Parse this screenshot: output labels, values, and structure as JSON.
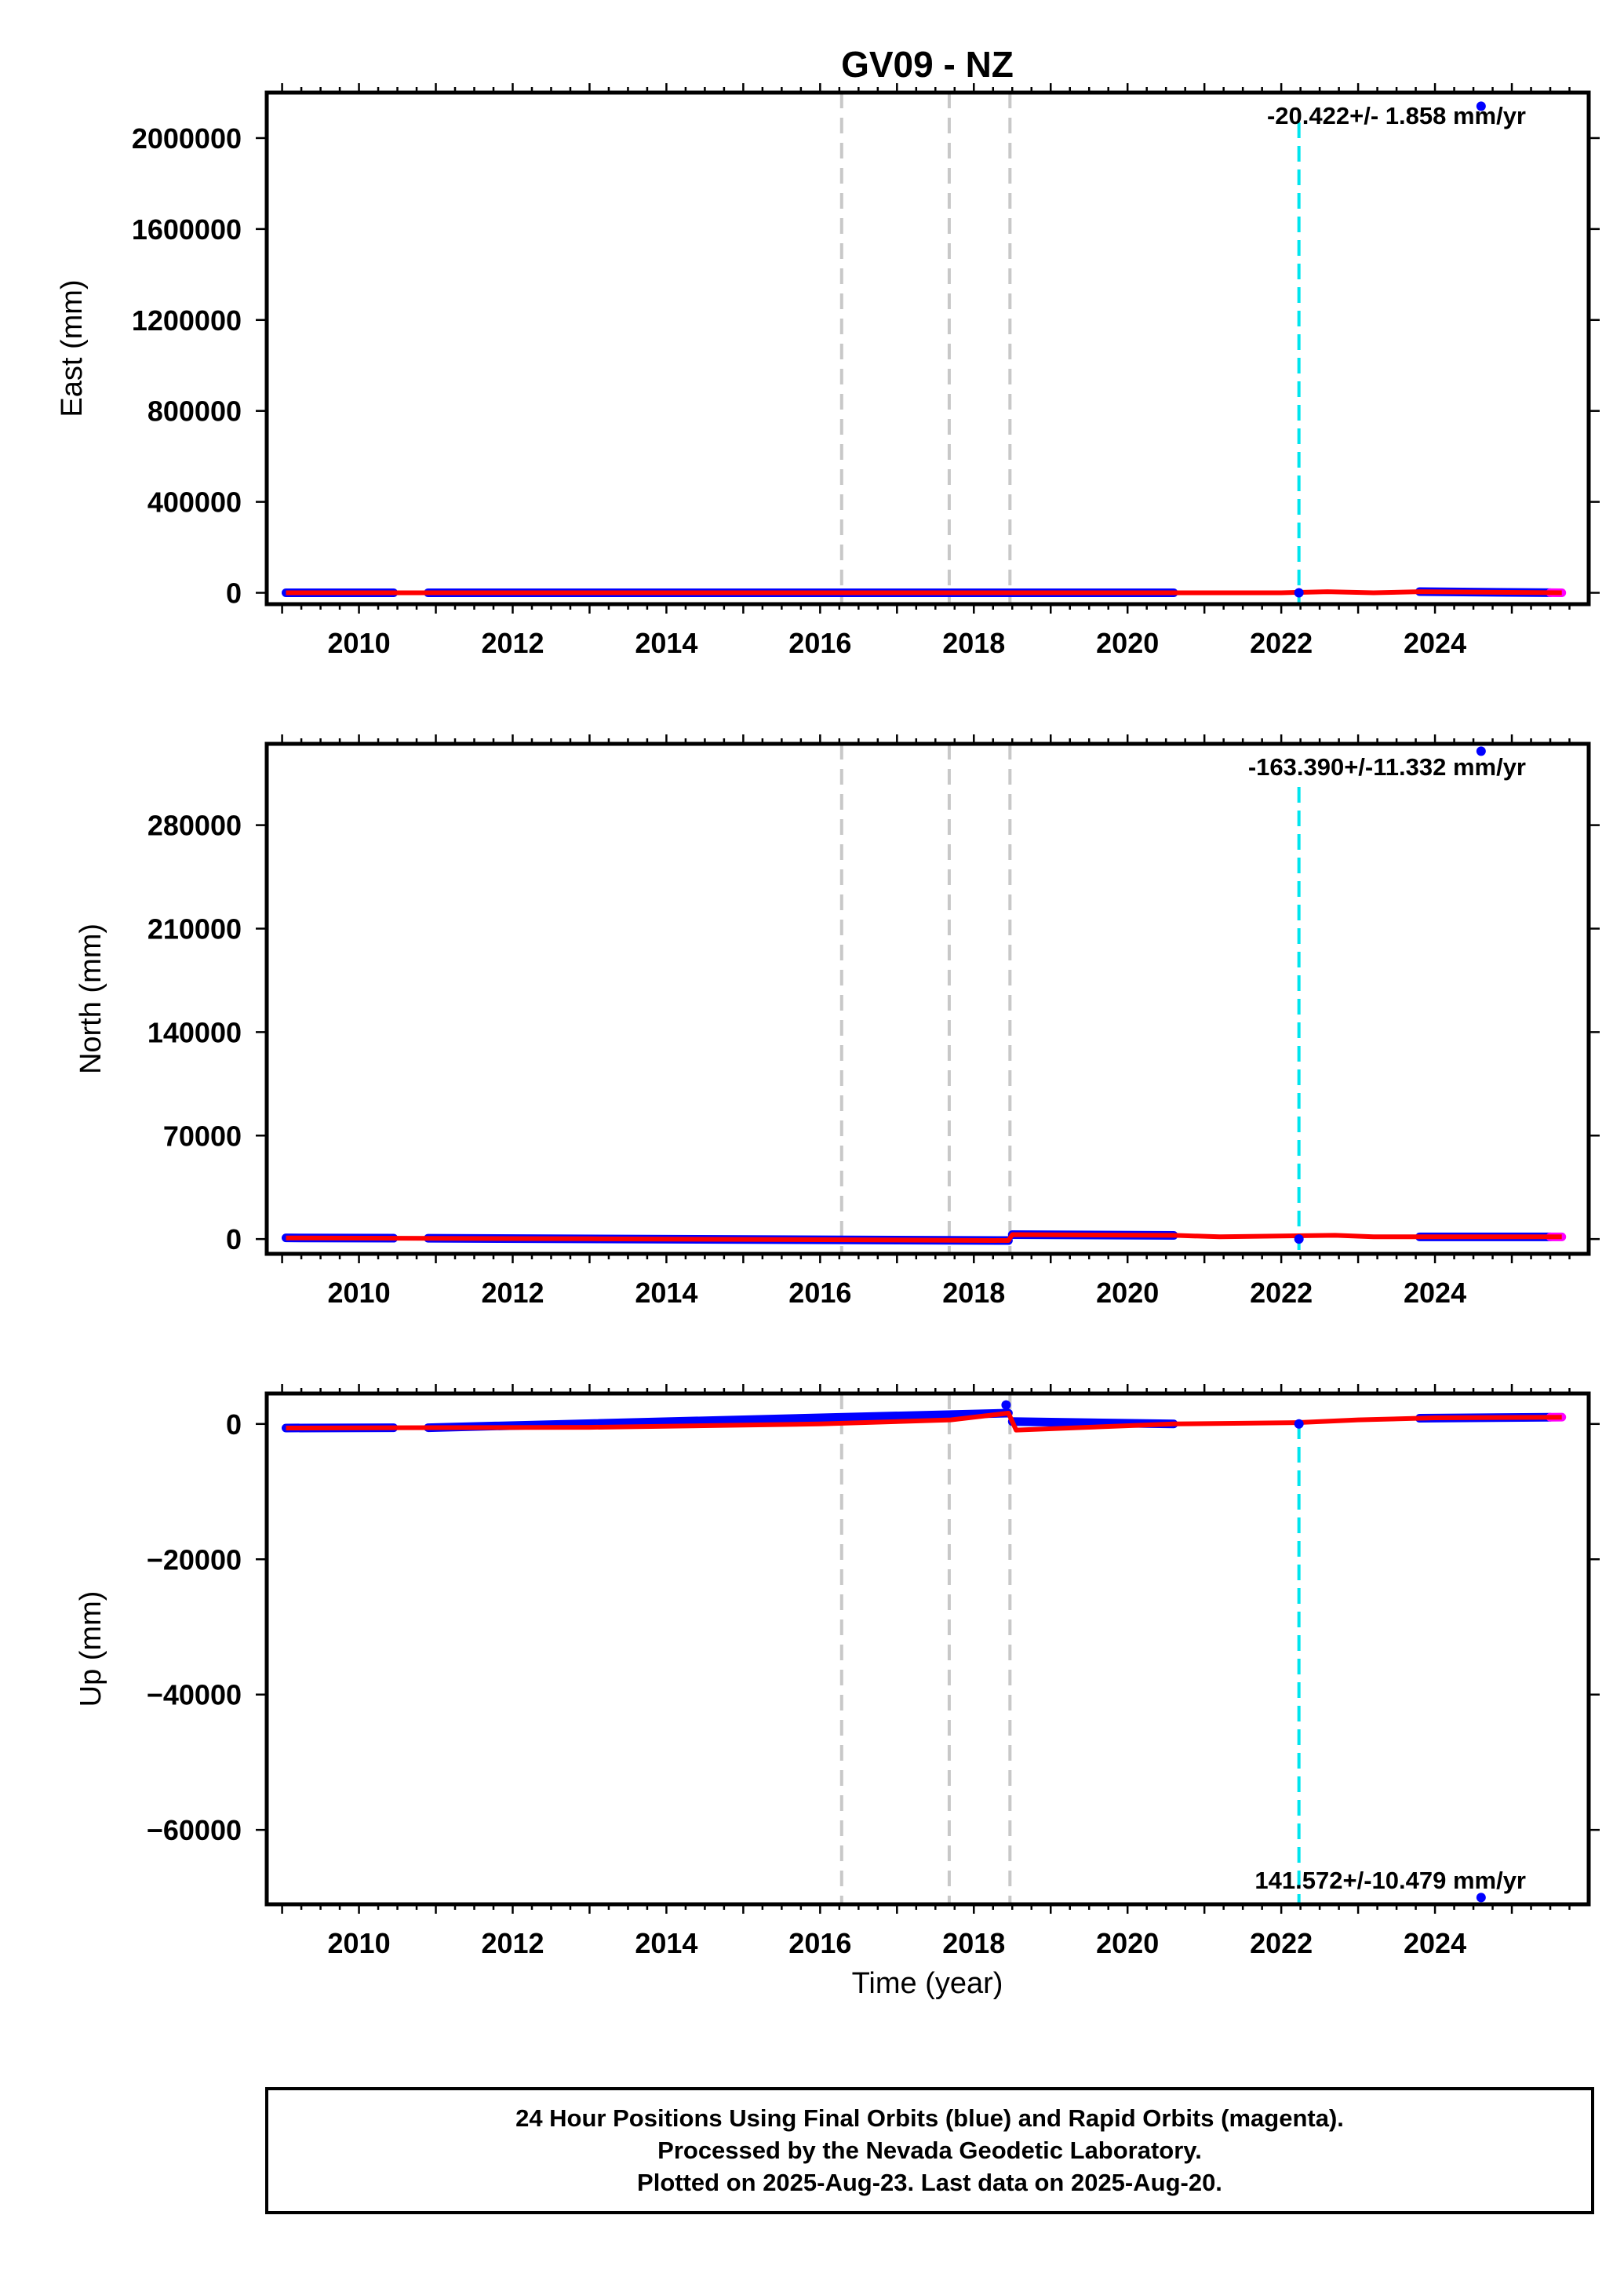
{
  "title": "GV09 - NZ",
  "xlabel": "Time (year)",
  "colors": {
    "final": "#0000ff",
    "rapid": "#ff00ff",
    "model": "#ff0000",
    "equipment_change": "#c8c8c8",
    "earthquake": "#00e5ee",
    "frame": "#000000"
  },
  "chart_data": [
    {
      "type": "scatter",
      "ylabel": "East (mm)",
      "xlim": [
        2008.8,
        2026.0
      ],
      "ylim": [
        -50000,
        2200000
      ],
      "xticks": [
        2010,
        2012,
        2014,
        2016,
        2018,
        2020,
        2022,
        2024
      ],
      "yticks": [
        0,
        400000,
        800000,
        1200000,
        1600000,
        2000000
      ],
      "equipment_changes": [
        2016.28,
        2017.68,
        2018.47
      ],
      "earthquake": 2022.23,
      "rate_label": "-20.422+/- 1.858 mm/yr",
      "series": [
        {
          "name": "final",
          "segments": [
            [
              2009.05,
              2010.45
            ],
            [
              2010.9,
              2020.6
            ],
            [
              2023.8,
              2025.5
            ]
          ]
        },
        {
          "name": "rapid",
          "segments": [
            [
              2025.5,
              2025.65
            ]
          ]
        }
      ],
      "model": [
        [
          2009.05,
          0
        ],
        [
          2020.6,
          0
        ],
        [
          2021.2,
          0
        ],
        [
          2022.0,
          0
        ],
        [
          2022.6,
          5000
        ],
        [
          2023.2,
          0
        ],
        [
          2023.8,
          5000
        ],
        [
          2025.65,
          0
        ]
      ],
      "outliers": [
        [
          2024.6,
          2140000
        ],
        [
          2022.23,
          0
        ]
      ]
    },
    {
      "type": "scatter",
      "ylabel": "North (mm)",
      "xlim": [
        2008.8,
        2026.0
      ],
      "ylim": [
        -10000,
        335000
      ],
      "xticks": [
        2010,
        2012,
        2014,
        2016,
        2018,
        2020,
        2022,
        2024
      ],
      "yticks": [
        0,
        70000,
        140000,
        210000,
        280000
      ],
      "equipment_changes": [
        2016.28,
        2017.68,
        2018.47
      ],
      "earthquake": 2022.23,
      "rate_label": "-163.390+/-11.332 mm/yr",
      "series": [
        {
          "name": "final",
          "segments": [
            [
              2009.05,
              2010.45
            ],
            [
              2010.9,
              2018.45
            ],
            [
              2018.5,
              2020.6
            ],
            [
              2023.8,
              2025.5
            ]
          ]
        },
        {
          "name": "rapid",
          "segments": [
            [
              2025.5,
              2025.65
            ]
          ]
        }
      ],
      "model": [
        [
          2009.05,
          800
        ],
        [
          2013.0,
          200
        ],
        [
          2018.45,
          -1000
        ],
        [
          2018.5,
          3000
        ],
        [
          2020.6,
          2500
        ],
        [
          2021.2,
          1500
        ],
        [
          2022.7,
          2500
        ],
        [
          2023.2,
          1500
        ],
        [
          2025.65,
          1500
        ]
      ],
      "outliers": [
        [
          2024.6,
          330000
        ],
        [
          2022.23,
          0
        ]
      ]
    },
    {
      "type": "scatter",
      "ylabel": "Up (mm)",
      "xlim": [
        2008.8,
        2026.0
      ],
      "ylim": [
        -71000,
        4500
      ],
      "xticks": [
        2010,
        2012,
        2014,
        2016,
        2018,
        2020,
        2022,
        2024
      ],
      "yticks": [
        0,
        -20000,
        -40000,
        -60000
      ],
      "equipment_changes": [
        2016.28,
        2017.68,
        2018.47
      ],
      "earthquake": 2022.23,
      "rate_label": "141.572+/-10.479 mm/yr",
      "series": [
        {
          "name": "final",
          "segments": [
            [
              2009.05,
              2010.45
            ],
            [
              2010.9,
              2018.45
            ],
            [
              2018.5,
              2020.6
            ],
            [
              2023.8,
              2025.5
            ]
          ]
        },
        {
          "name": "rapid",
          "segments": [
            [
              2025.5,
              2025.65
            ]
          ]
        }
      ],
      "model": [
        [
          2009.05,
          -600
        ],
        [
          2013.0,
          -500
        ],
        [
          2016.0,
          0
        ],
        [
          2017.7,
          600
        ],
        [
          2018.45,
          1600
        ],
        [
          2018.55,
          -900
        ],
        [
          2020.6,
          0
        ],
        [
          2021.5,
          100
        ],
        [
          2022.2,
          200
        ],
        [
          2023.0,
          600
        ],
        [
          2024.0,
          900
        ],
        [
          2025.65,
          1000
        ]
      ],
      "outliers": [
        [
          2024.6,
          -70000
        ],
        [
          2018.42,
          2800
        ],
        [
          2022.23,
          0
        ]
      ]
    }
  ],
  "footer": {
    "line1": "24 Hour Positions Using Final Orbits (blue) and Rapid Orbits (magenta).",
    "line2": "Processed by the Nevada Geodetic Laboratory.",
    "line3": "Plotted on 2025-Aug-23. Last data on 2025-Aug-20."
  }
}
